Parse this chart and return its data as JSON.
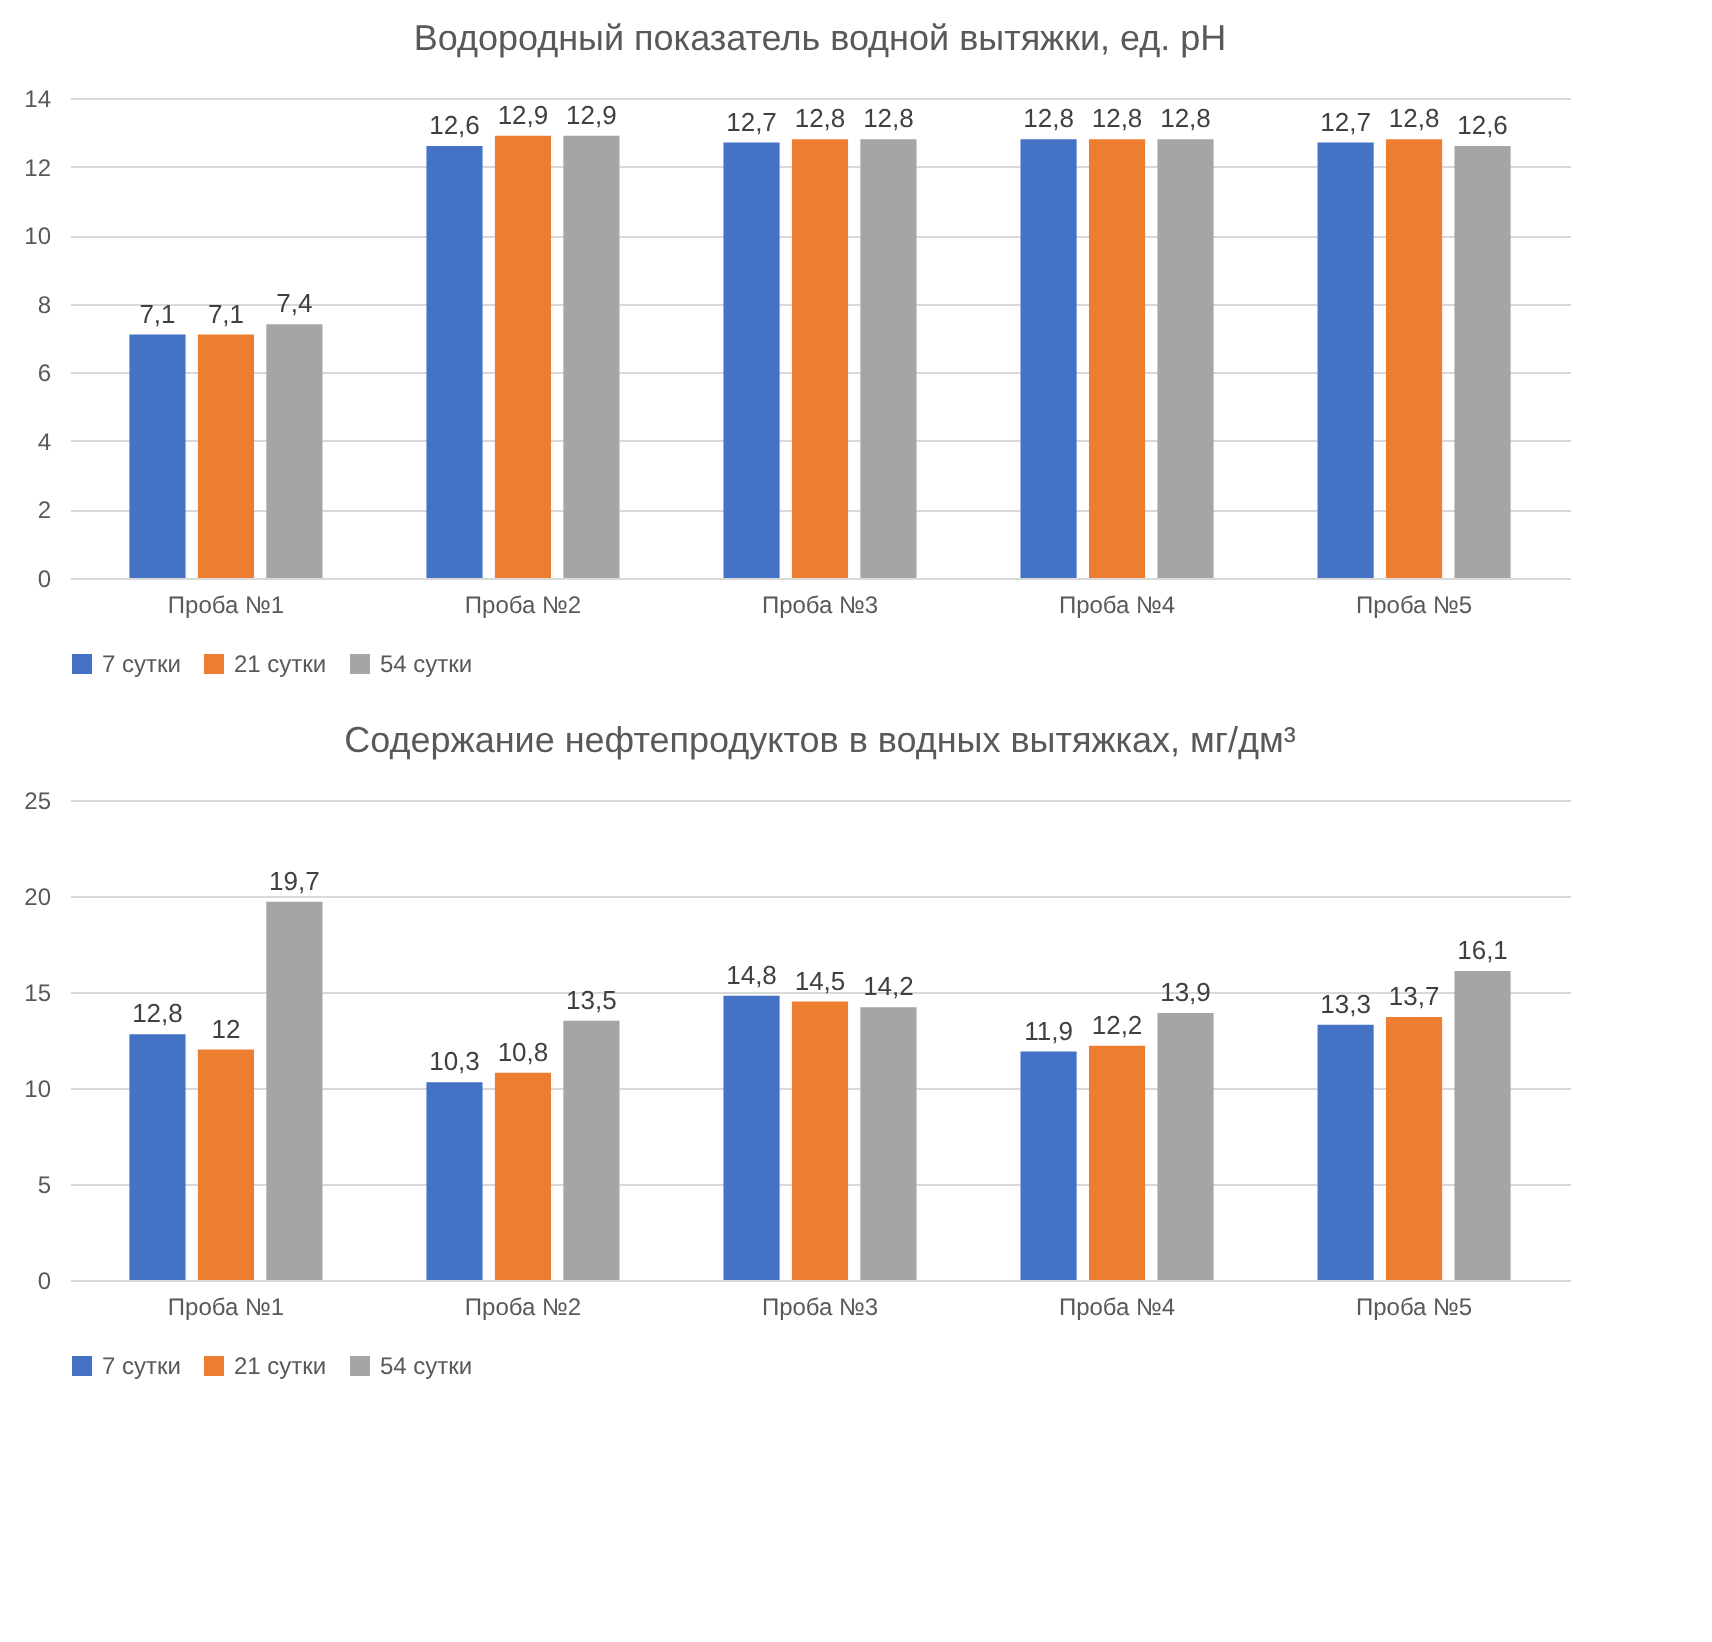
{
  "chart_data": [
    {
      "type": "bar",
      "title": "Водородный показатель водной вытяжки, ед. pH",
      "categories": [
        "Проба №1",
        "Проба №2",
        "Проба №3",
        "Проба №4",
        "Проба №5"
      ],
      "ylim": [
        0,
        14
      ],
      "yticks": [
        0,
        2,
        4,
        6,
        8,
        10,
        12,
        14
      ],
      "grid": "y",
      "legend": "bottom",
      "series": [
        {
          "name": "7 сутки",
          "color": "#4472c4",
          "values": [
            7.1,
            12.6,
            12.7,
            12.8,
            12.7
          ],
          "value_labels": [
            "7,1",
            "12,6",
            "12,7",
            "12,8",
            "12,7"
          ]
        },
        {
          "name": "21 сутки",
          "color": "#ed7d31",
          "values": [
            7.1,
            12.9,
            12.8,
            12.8,
            12.8
          ],
          "value_labels": [
            "7,1",
            "12,9",
            "12,8",
            "12,8",
            "12,8"
          ]
        },
        {
          "name": "54 сутки",
          "color": "#a5a5a5",
          "values": [
            7.4,
            12.9,
            12.8,
            12.8,
            12.6
          ],
          "value_labels": [
            "7,4",
            "12,9",
            "12,8",
            "12,8",
            "12,6"
          ]
        }
      ]
    },
    {
      "type": "bar",
      "title": "Содержание нефтепродуктов в водных вытяжках, мг/дм³",
      "categories": [
        "Проба №1",
        "Проба №2",
        "Проба №3",
        "Проба №4",
        "Проба №5"
      ],
      "ylim": [
        0,
        25
      ],
      "yticks": [
        0,
        5,
        10,
        15,
        20,
        25
      ],
      "grid": "y",
      "legend": "bottom",
      "series": [
        {
          "name": "7 сутки",
          "color": "#4472c4",
          "values": [
            12.8,
            10.3,
            14.8,
            11.9,
            13.3
          ],
          "value_labels": [
            "12,8",
            "10,3",
            "14,8",
            "11,9",
            "13,3"
          ]
        },
        {
          "name": "21 сутки",
          "color": "#ed7d31",
          "values": [
            12,
            10.8,
            14.5,
            12.2,
            13.7
          ],
          "value_labels": [
            "12",
            "10,8",
            "14,5",
            "12,2",
            "13,7"
          ]
        },
        {
          "name": "54 сутки",
          "color": "#a5a5a5",
          "values": [
            19.7,
            13.5,
            14.2,
            13.9,
            16.1
          ],
          "value_labels": [
            "19,7",
            "13,5",
            "14,2",
            "13,9",
            "16,1"
          ]
        }
      ]
    }
  ]
}
